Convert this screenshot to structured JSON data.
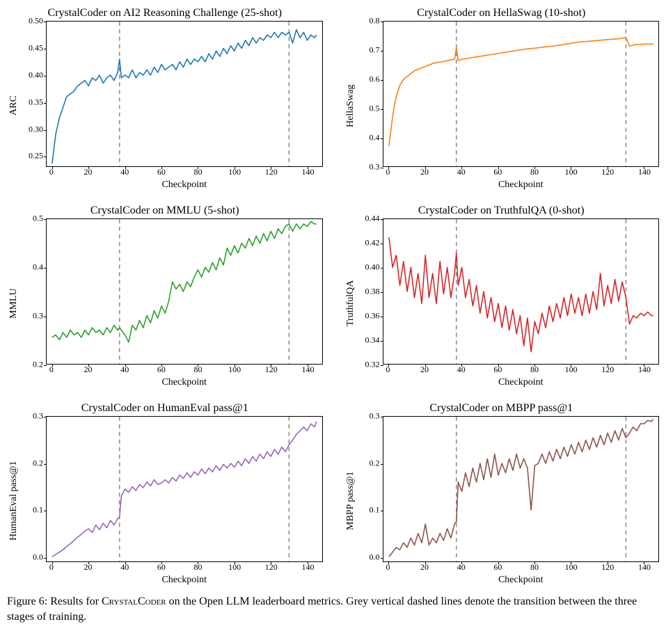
{
  "figure_caption_prefix": "Figure 6: Results for ",
  "figure_caption_name": "CrystalCoder",
  "figure_caption_rest": " on the Open LLM leaderboard metrics. Grey vertical dashed lines denote the transition between the three stages of training.",
  "xlabel": "Checkpoint",
  "grid_color": "#b0b0b0",
  "dash_color": "#888888",
  "vlines": [
    37,
    130
  ],
  "panels": [
    {
      "id": "arc",
      "title": "CrystalCoder on AI2 Reasoning Challenge (25-shot)",
      "ylabel": "ARC",
      "color": "#1f77b4",
      "line_width": 1.6,
      "xlim": [
        -3,
        148
      ],
      "ylim": [
        0.23,
        0.5
      ],
      "yticks": [
        0.25,
        0.3,
        0.35,
        0.4,
        0.45,
        0.5
      ],
      "ytick_labels": [
        "0.25",
        "0.30",
        "0.35",
        "0.40",
        "0.45",
        "0.50"
      ],
      "xticks": [
        0,
        20,
        40,
        60,
        80,
        100,
        120,
        140
      ],
      "xtick_labels": [
        "0",
        "20",
        "40",
        "60",
        "80",
        "100",
        "120",
        "140"
      ],
      "x": [
        0,
        2,
        4,
        6,
        8,
        10,
        12,
        14,
        16,
        18,
        20,
        22,
        24,
        26,
        28,
        30,
        32,
        34,
        36,
        37,
        38,
        40,
        42,
        44,
        46,
        48,
        50,
        52,
        54,
        56,
        58,
        60,
        62,
        64,
        66,
        68,
        70,
        72,
        74,
        76,
        78,
        80,
        82,
        84,
        86,
        88,
        90,
        92,
        94,
        96,
        98,
        100,
        102,
        104,
        106,
        108,
        110,
        112,
        114,
        116,
        118,
        120,
        122,
        124,
        126,
        128,
        130,
        132,
        134,
        136,
        138,
        140,
        142,
        144,
        145
      ],
      "y": [
        0.235,
        0.29,
        0.32,
        0.34,
        0.36,
        0.365,
        0.37,
        0.38,
        0.385,
        0.39,
        0.38,
        0.395,
        0.39,
        0.4,
        0.385,
        0.395,
        0.4,
        0.39,
        0.405,
        0.43,
        0.395,
        0.4,
        0.395,
        0.41,
        0.395,
        0.405,
        0.4,
        0.41,
        0.4,
        0.415,
        0.405,
        0.42,
        0.41,
        0.415,
        0.42,
        0.41,
        0.425,
        0.415,
        0.43,
        0.42,
        0.43,
        0.425,
        0.435,
        0.425,
        0.44,
        0.43,
        0.445,
        0.435,
        0.45,
        0.44,
        0.455,
        0.445,
        0.46,
        0.45,
        0.465,
        0.455,
        0.47,
        0.46,
        0.47,
        0.465,
        0.475,
        0.47,
        0.48,
        0.47,
        0.48,
        0.475,
        0.48,
        0.46,
        0.485,
        0.47,
        0.48,
        0.465,
        0.475,
        0.47,
        0.475
      ]
    },
    {
      "id": "hella",
      "title": "CrystalCoder on HellaSwag (10-shot)",
      "ylabel": "HellaSwag",
      "color": "#ff7f0e",
      "line_width": 1.6,
      "xlim": [
        -3,
        148
      ],
      "ylim": [
        0.3,
        0.8
      ],
      "yticks": [
        0.3,
        0.4,
        0.5,
        0.6,
        0.7,
        0.8
      ],
      "ytick_labels": [
        "0.3",
        "0.4",
        "0.5",
        "0.6",
        "0.7",
        "0.8"
      ],
      "xticks": [
        0,
        20,
        40,
        60,
        80,
        100,
        120,
        140
      ],
      "xtick_labels": [
        "0",
        "20",
        "40",
        "60",
        "80",
        "100",
        "120",
        "140"
      ],
      "x": [
        0,
        1,
        2,
        3,
        4,
        5,
        6,
        8,
        10,
        12,
        14,
        16,
        18,
        20,
        22,
        24,
        26,
        28,
        30,
        32,
        34,
        36,
        37,
        38,
        40,
        45,
        50,
        55,
        60,
        65,
        70,
        75,
        80,
        85,
        90,
        95,
        100,
        105,
        110,
        115,
        120,
        125,
        128,
        130,
        132,
        135,
        140,
        145
      ],
      "y": [
        0.37,
        0.42,
        0.47,
        0.51,
        0.54,
        0.56,
        0.58,
        0.6,
        0.61,
        0.62,
        0.63,
        0.635,
        0.64,
        0.645,
        0.65,
        0.655,
        0.658,
        0.66,
        0.662,
        0.665,
        0.668,
        0.67,
        0.71,
        0.665,
        0.67,
        0.675,
        0.68,
        0.685,
        0.69,
        0.695,
        0.7,
        0.705,
        0.708,
        0.712,
        0.715,
        0.72,
        0.725,
        0.73,
        0.732,
        0.735,
        0.738,
        0.74,
        0.742,
        0.745,
        0.715,
        0.72,
        0.722,
        0.723
      ]
    },
    {
      "id": "mmlu",
      "title": "CrystalCoder on MMLU (5-shot)",
      "ylabel": "MMLU",
      "color": "#2ca02c",
      "line_width": 1.6,
      "xlim": [
        -3,
        148
      ],
      "ylim": [
        0.2,
        0.5
      ],
      "yticks": [
        0.2,
        0.3,
        0.4,
        0.5
      ],
      "ytick_labels": [
        "0.2",
        "0.3",
        "0.4",
        "0.5"
      ],
      "xticks": [
        0,
        20,
        40,
        60,
        80,
        100,
        120,
        140
      ],
      "xtick_labels": [
        "0",
        "20",
        "40",
        "60",
        "80",
        "100",
        "120",
        "140"
      ],
      "x": [
        0,
        2,
        4,
        6,
        8,
        10,
        12,
        14,
        16,
        18,
        20,
        22,
        24,
        26,
        28,
        30,
        32,
        34,
        36,
        37,
        40,
        42,
        44,
        46,
        48,
        50,
        52,
        54,
        56,
        58,
        60,
        62,
        64,
        66,
        68,
        70,
        72,
        74,
        76,
        78,
        80,
        82,
        84,
        86,
        88,
        90,
        92,
        94,
        96,
        98,
        100,
        102,
        104,
        106,
        108,
        110,
        112,
        114,
        116,
        118,
        120,
        122,
        124,
        126,
        128,
        130,
        132,
        134,
        136,
        138,
        140,
        142,
        144,
        145
      ],
      "y": [
        0.255,
        0.26,
        0.25,
        0.265,
        0.255,
        0.27,
        0.26,
        0.265,
        0.255,
        0.27,
        0.26,
        0.275,
        0.265,
        0.27,
        0.26,
        0.275,
        0.265,
        0.28,
        0.27,
        0.275,
        0.26,
        0.245,
        0.28,
        0.27,
        0.29,
        0.275,
        0.3,
        0.285,
        0.31,
        0.295,
        0.32,
        0.305,
        0.33,
        0.37,
        0.355,
        0.365,
        0.35,
        0.37,
        0.36,
        0.38,
        0.395,
        0.38,
        0.4,
        0.39,
        0.41,
        0.395,
        0.42,
        0.405,
        0.44,
        0.425,
        0.445,
        0.43,
        0.45,
        0.44,
        0.46,
        0.445,
        0.465,
        0.45,
        0.47,
        0.455,
        0.475,
        0.46,
        0.48,
        0.47,
        0.485,
        0.49,
        0.475,
        0.49,
        0.48,
        0.49,
        0.485,
        0.495,
        0.49,
        0.49
      ]
    },
    {
      "id": "truthful",
      "title": "CrystalCoder on TruthfulQA (0-shot)",
      "ylabel": "TruthfulQA",
      "color": "#d62728",
      "line_width": 1.6,
      "xlim": [
        -3,
        148
      ],
      "ylim": [
        0.32,
        0.44
      ],
      "yticks": [
        0.32,
        0.34,
        0.36,
        0.38,
        0.4,
        0.42,
        0.44
      ],
      "ytick_labels": [
        "0.32",
        "0.34",
        "0.36",
        "0.38",
        "0.40",
        "0.42",
        "0.44"
      ],
      "xticks": [
        0,
        20,
        40,
        60,
        80,
        100,
        120,
        140
      ],
      "xtick_labels": [
        "0",
        "20",
        "40",
        "60",
        "80",
        "100",
        "120",
        "140"
      ],
      "x": [
        0,
        2,
        4,
        6,
        8,
        10,
        12,
        14,
        16,
        18,
        20,
        22,
        24,
        26,
        28,
        30,
        32,
        34,
        36,
        37,
        38,
        40,
        42,
        44,
        46,
        48,
        50,
        52,
        54,
        56,
        58,
        60,
        62,
        64,
        66,
        68,
        70,
        72,
        74,
        76,
        78,
        80,
        82,
        84,
        86,
        88,
        90,
        92,
        94,
        96,
        98,
        100,
        102,
        104,
        106,
        108,
        110,
        112,
        114,
        116,
        118,
        120,
        122,
        124,
        126,
        128,
        130,
        132,
        134,
        136,
        138,
        140,
        142,
        144,
        145
      ],
      "y": [
        0.425,
        0.4,
        0.41,
        0.385,
        0.405,
        0.38,
        0.4,
        0.375,
        0.395,
        0.37,
        0.41,
        0.375,
        0.395,
        0.37,
        0.405,
        0.378,
        0.4,
        0.375,
        0.395,
        0.412,
        0.385,
        0.4,
        0.375,
        0.39,
        0.368,
        0.385,
        0.362,
        0.38,
        0.358,
        0.375,
        0.355,
        0.37,
        0.35,
        0.368,
        0.348,
        0.365,
        0.345,
        0.36,
        0.335,
        0.358,
        0.33,
        0.355,
        0.345,
        0.362,
        0.35,
        0.368,
        0.355,
        0.37,
        0.358,
        0.375,
        0.36,
        0.378,
        0.362,
        0.375,
        0.36,
        0.378,
        0.362,
        0.38,
        0.365,
        0.395,
        0.368,
        0.385,
        0.37,
        0.39,
        0.372,
        0.388,
        0.375,
        0.353,
        0.36,
        0.358,
        0.362,
        0.36,
        0.363,
        0.36,
        0.36
      ]
    },
    {
      "id": "humaneval",
      "title": "CrystalCoder on HumanEval pass@1",
      "ylabel": "HumanEval pass@1",
      "color": "#9467bd",
      "line_width": 1.6,
      "xlim": [
        -3,
        148
      ],
      "ylim": [
        -0.01,
        0.3
      ],
      "yticks": [
        0.0,
        0.1,
        0.2,
        0.3
      ],
      "ytick_labels": [
        "0.0",
        "0.1",
        "0.2",
        "0.3"
      ],
      "xticks": [
        0,
        20,
        40,
        60,
        80,
        100,
        120,
        140
      ],
      "xtick_labels": [
        "0",
        "20",
        "40",
        "60",
        "80",
        "100",
        "120",
        "140"
      ],
      "x": [
        0,
        2,
        4,
        6,
        8,
        10,
        12,
        14,
        16,
        18,
        20,
        22,
        24,
        26,
        28,
        30,
        32,
        34,
        36,
        37,
        38,
        40,
        42,
        44,
        46,
        48,
        50,
        52,
        54,
        56,
        58,
        60,
        62,
        64,
        66,
        68,
        70,
        72,
        74,
        76,
        78,
        80,
        82,
        84,
        86,
        88,
        90,
        92,
        94,
        96,
        98,
        100,
        102,
        104,
        106,
        108,
        110,
        112,
        114,
        116,
        118,
        120,
        122,
        124,
        126,
        128,
        130,
        132,
        134,
        136,
        138,
        140,
        142,
        144,
        145
      ],
      "y": [
        0.0,
        0.005,
        0.01,
        0.015,
        0.022,
        0.028,
        0.035,
        0.042,
        0.048,
        0.055,
        0.06,
        0.052,
        0.068,
        0.058,
        0.072,
        0.062,
        0.078,
        0.068,
        0.082,
        0.085,
        0.13,
        0.145,
        0.138,
        0.15,
        0.142,
        0.155,
        0.148,
        0.16,
        0.152,
        0.165,
        0.155,
        0.158,
        0.165,
        0.158,
        0.17,
        0.162,
        0.175,
        0.168,
        0.18,
        0.17,
        0.182,
        0.175,
        0.188,
        0.178,
        0.19,
        0.182,
        0.195,
        0.185,
        0.198,
        0.19,
        0.2,
        0.192,
        0.205,
        0.195,
        0.21,
        0.2,
        0.215,
        0.205,
        0.22,
        0.21,
        0.225,
        0.215,
        0.23,
        0.22,
        0.235,
        0.225,
        0.24,
        0.25,
        0.262,
        0.27,
        0.278,
        0.27,
        0.285,
        0.278,
        0.29
      ]
    },
    {
      "id": "mbpp",
      "title": "CrystalCoder on MBPP pass@1",
      "ylabel": "MBPP pass@1",
      "color": "#8c564b",
      "line_width": 1.6,
      "xlim": [
        -3,
        148
      ],
      "ylim": [
        -0.01,
        0.3
      ],
      "yticks": [
        0.0,
        0.1,
        0.2,
        0.3
      ],
      "ytick_labels": [
        "0.0",
        "0.1",
        "0.2",
        "0.3"
      ],
      "xticks": [
        0,
        20,
        40,
        60,
        80,
        100,
        120,
        140
      ],
      "xtick_labels": [
        "0",
        "20",
        "40",
        "60",
        "80",
        "100",
        "120",
        "140"
      ],
      "x": [
        0,
        2,
        4,
        6,
        8,
        10,
        12,
        14,
        16,
        18,
        20,
        22,
        24,
        26,
        28,
        30,
        32,
        34,
        36,
        37,
        38,
        40,
        42,
        44,
        46,
        48,
        50,
        52,
        54,
        56,
        58,
        60,
        62,
        64,
        66,
        68,
        70,
        72,
        74,
        76,
        78,
        80,
        82,
        84,
        86,
        88,
        90,
        92,
        94,
        96,
        98,
        100,
        102,
        104,
        106,
        108,
        110,
        112,
        114,
        116,
        118,
        120,
        122,
        124,
        126,
        128,
        130,
        132,
        134,
        136,
        138,
        140,
        142,
        144,
        145
      ],
      "y": [
        0.0,
        0.01,
        0.02,
        0.015,
        0.03,
        0.02,
        0.04,
        0.025,
        0.05,
        0.03,
        0.07,
        0.025,
        0.04,
        0.03,
        0.05,
        0.035,
        0.06,
        0.04,
        0.07,
        0.075,
        0.16,
        0.14,
        0.18,
        0.15,
        0.19,
        0.16,
        0.2,
        0.165,
        0.21,
        0.17,
        0.22,
        0.175,
        0.2,
        0.18,
        0.21,
        0.185,
        0.22,
        0.19,
        0.21,
        0.19,
        0.1,
        0.195,
        0.2,
        0.22,
        0.2,
        0.225,
        0.205,
        0.23,
        0.21,
        0.235,
        0.215,
        0.24,
        0.22,
        0.245,
        0.225,
        0.25,
        0.23,
        0.255,
        0.235,
        0.26,
        0.24,
        0.265,
        0.245,
        0.27,
        0.25,
        0.275,
        0.255,
        0.265,
        0.278,
        0.27,
        0.285,
        0.285,
        0.292,
        0.29,
        0.295
      ]
    }
  ]
}
